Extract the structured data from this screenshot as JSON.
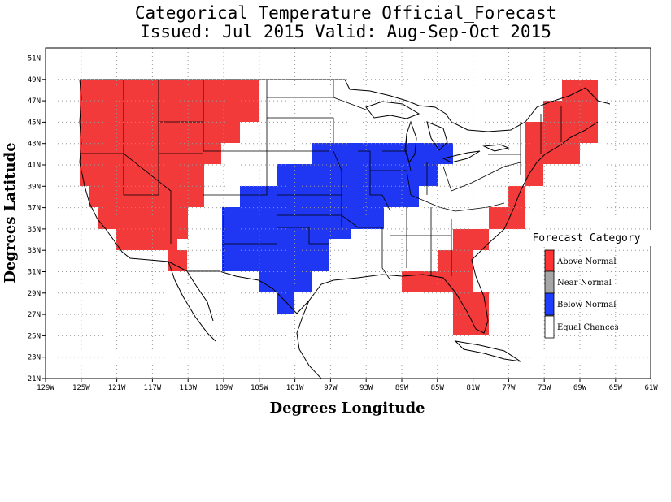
{
  "title": "Categorical Temperature Official_Forecast",
  "subtitle": "Issued: Jul 2015 Valid: Aug-Sep-Oct 2015",
  "ylabel": "Degrees Latitude",
  "xlabel": "Degrees Longitude",
  "lon_ticks": [
    "129W",
    "125W",
    "121W",
    "117W",
    "113W",
    "109W",
    "105W",
    "101W",
    "97W",
    "93W",
    "89W",
    "85W",
    "81W",
    "77W",
    "73W",
    "69W",
    "65W",
    "61W"
  ],
  "lat_ticks": [
    "21N",
    "23N",
    "25N",
    "27N",
    "29N",
    "31N",
    "33N",
    "35N",
    "37N",
    "39N",
    "41N",
    "43N",
    "45N",
    "47N",
    "49N",
    "51N"
  ],
  "lon_range": [
    -129,
    -61
  ],
  "lat_range": [
    21,
    52
  ],
  "legend": {
    "title": "Forecast Category",
    "items": [
      {
        "label": "Above Normal",
        "color": "#ff3333"
      },
      {
        "label": "Near Normal",
        "color": "#a6a6a6"
      },
      {
        "label": "Below Normal",
        "color": "#1f3dff"
      },
      {
        "label": "Equal Chances",
        "color": "#ffffff"
      }
    ]
  },
  "colors": {
    "above": "#f23a3a",
    "below": "#1f37f2"
  }
}
